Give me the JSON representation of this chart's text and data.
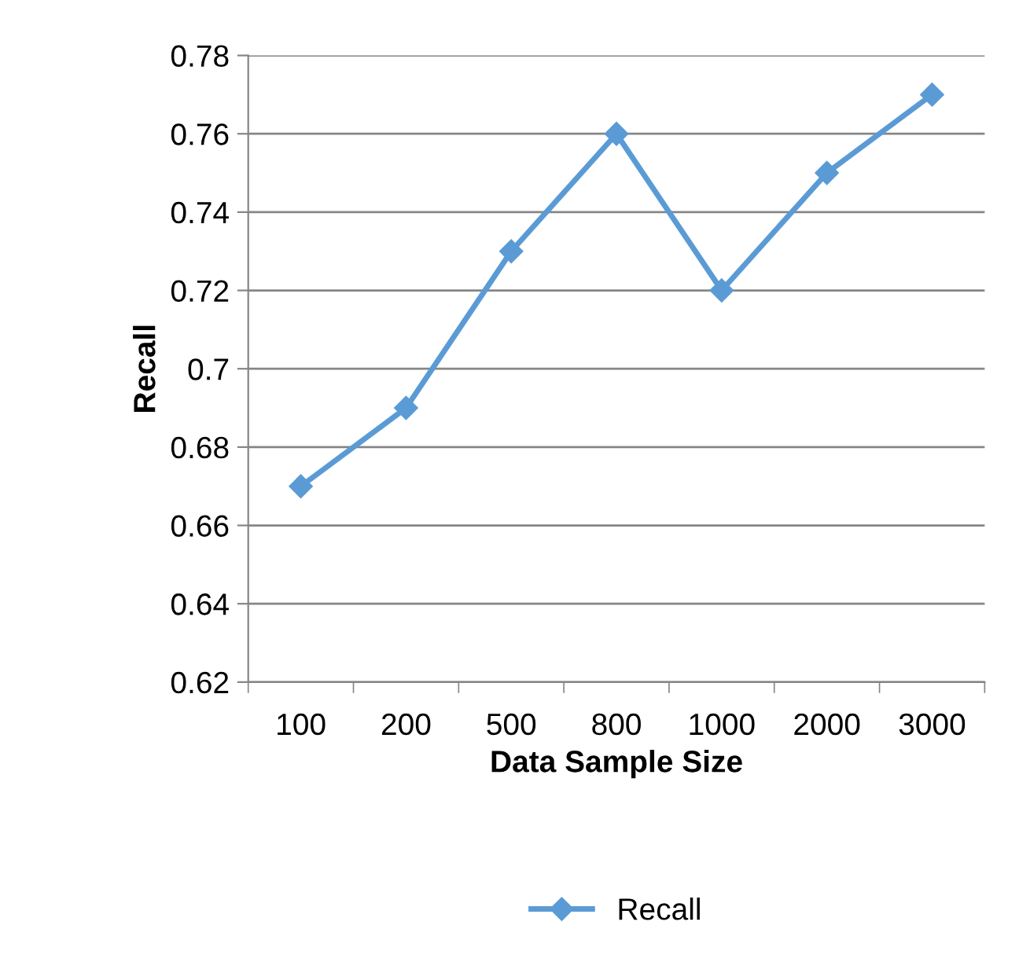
{
  "chart_data": {
    "type": "line",
    "xlabel": "Data Sample Size",
    "ylabel": "Recall",
    "categories": [
      "100",
      "200",
      "500",
      "800",
      "1000",
      "2000",
      "3000"
    ],
    "series": [
      {
        "name": "Recall",
        "color": "#5b9bd5",
        "values": [
          0.67,
          0.69,
          0.73,
          0.76,
          0.72,
          0.75,
          0.77
        ]
      }
    ],
    "ylim": [
      0.62,
      0.78
    ],
    "yticks": [
      0.62,
      0.64,
      0.66,
      0.68,
      0.7,
      0.72,
      0.74,
      0.76,
      0.78
    ],
    "grid": "y",
    "legend": "bottom",
    "marker": "diamond",
    "line_style": "solid"
  }
}
